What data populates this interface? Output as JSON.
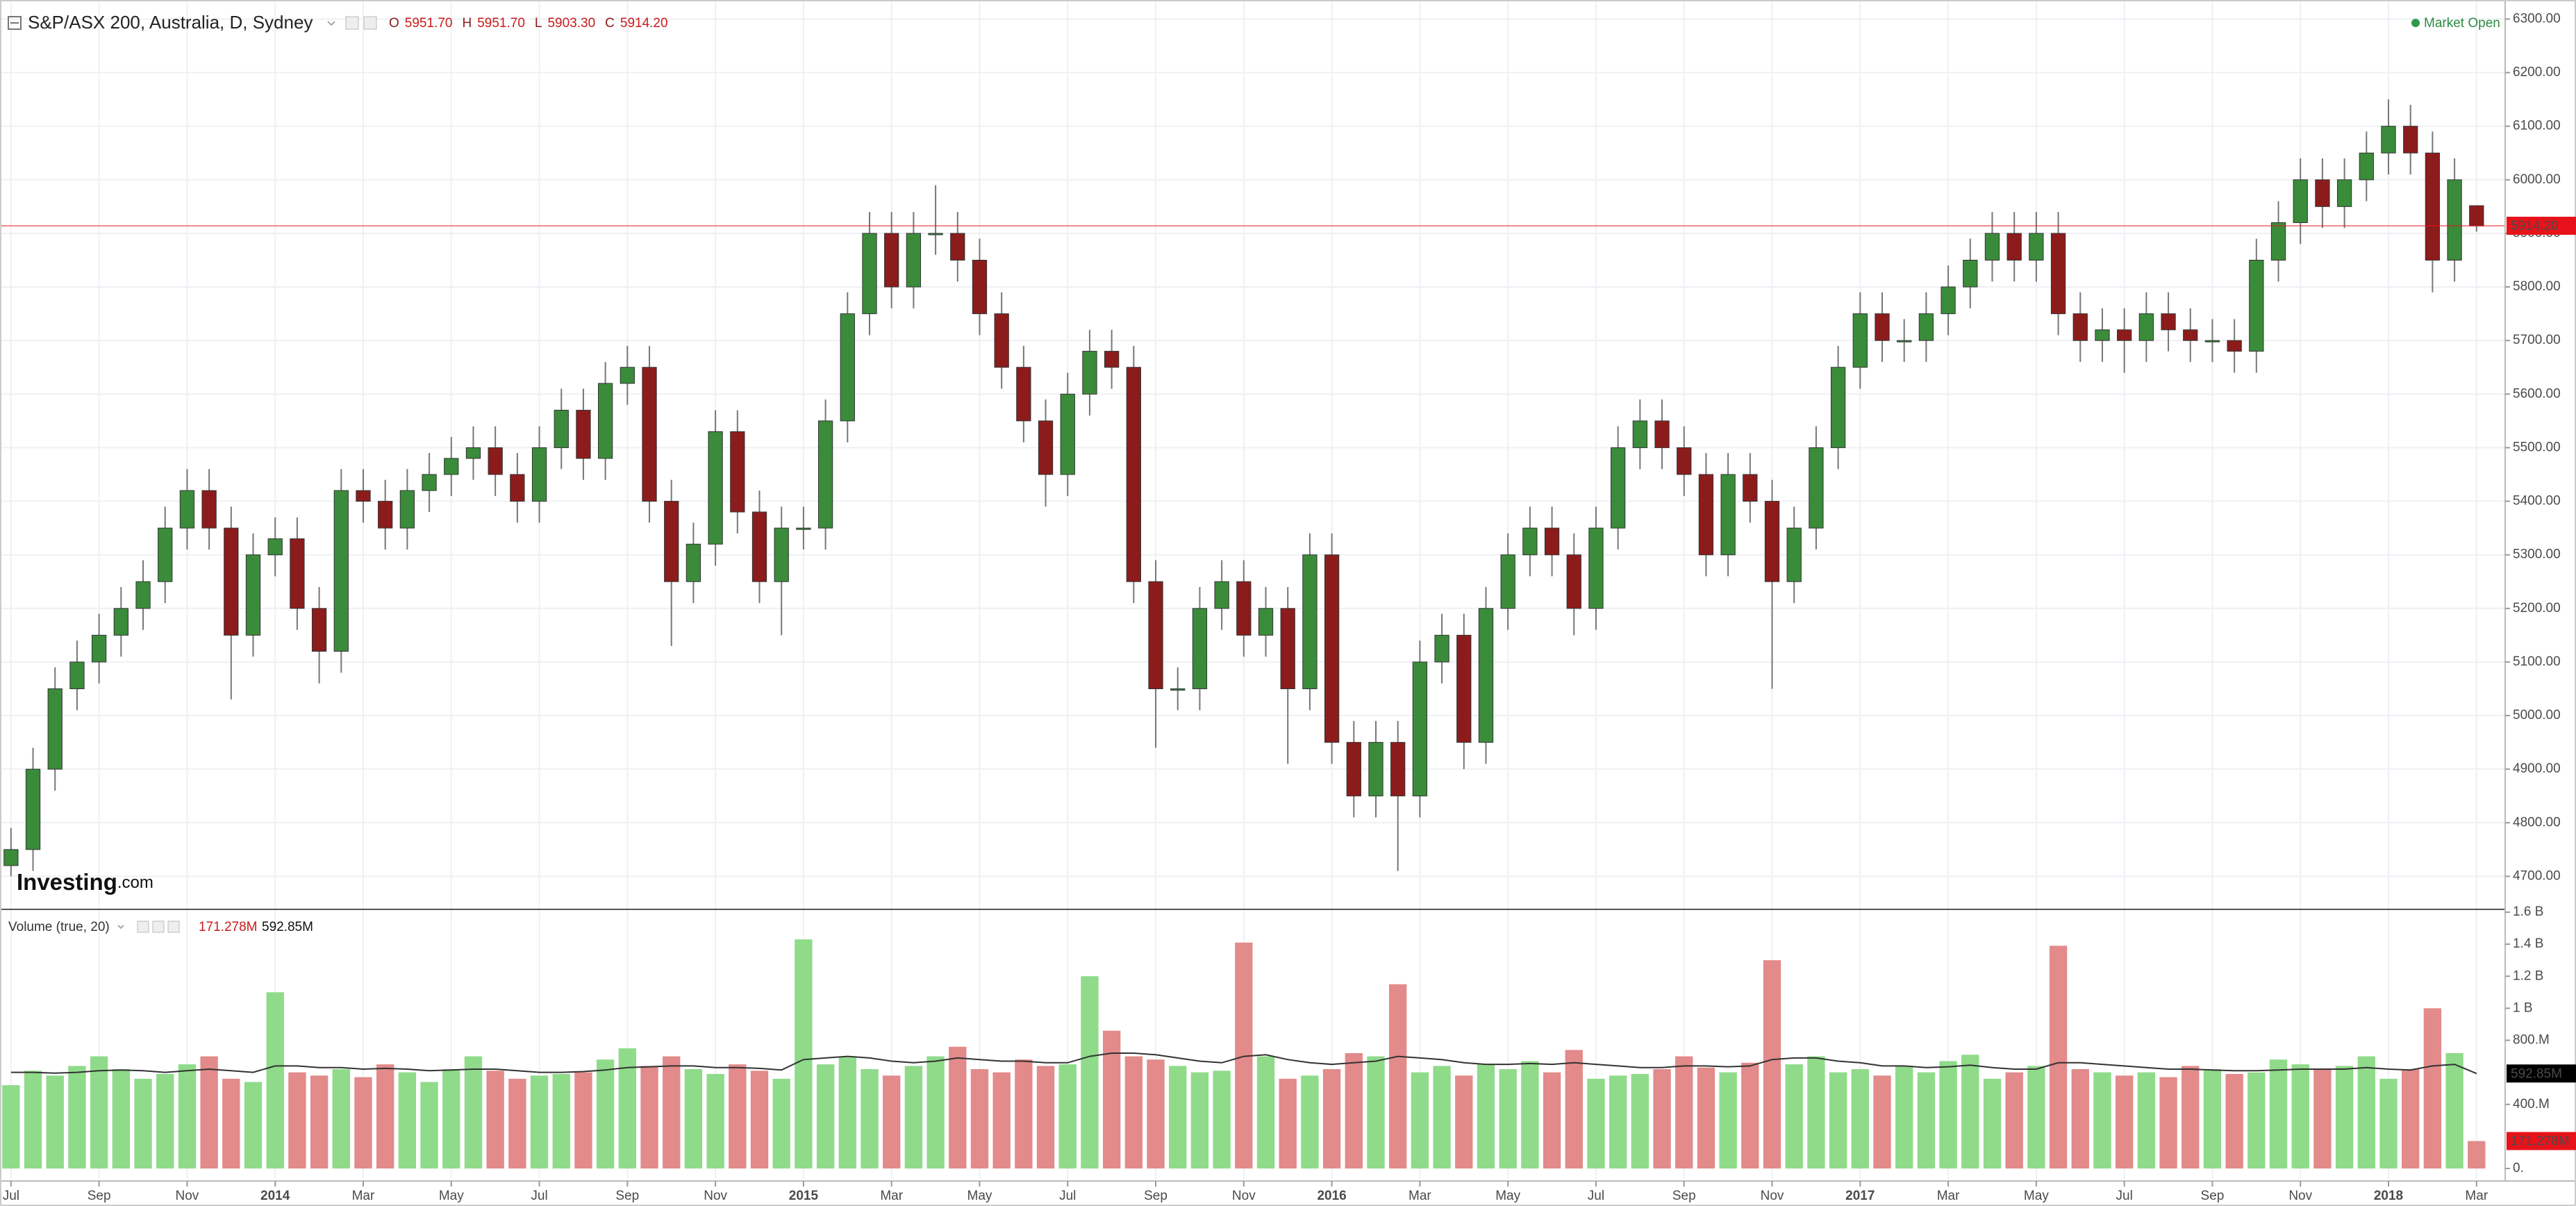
{
  "header": {
    "title": "S&P/ASX 200, Australia, D, Sydney",
    "ohlc": [
      {
        "label": "O",
        "value": "5951.70"
      },
      {
        "label": "H",
        "value": "5951.70"
      },
      {
        "label": "L",
        "value": "5903.30"
      },
      {
        "label": "C",
        "value": "5914.20"
      }
    ],
    "status": "Market Open"
  },
  "logo": {
    "brand": "Investing",
    "suffix": ".com"
  },
  "chart_data": [
    {
      "type": "candlestick",
      "up_color": "#3a8c3a",
      "down_color": "#8c1c1c",
      "grid": true,
      "ylim": [
        4650,
        6320
      ],
      "yticks": [
        {
          "value": 4700,
          "label": "4700.00"
        },
        {
          "value": 4800,
          "label": "4800.00"
        },
        {
          "value": 4900,
          "label": "4900.00"
        },
        {
          "value": 5000,
          "label": "5000.00"
        },
        {
          "value": 5100,
          "label": "5100.00"
        },
        {
          "value": 5200,
          "label": "5200.00"
        },
        {
          "value": 5300,
          "label": "5300.00"
        },
        {
          "value": 5400,
          "label": "5400.00"
        },
        {
          "value": 5500,
          "label": "5500.00"
        },
        {
          "value": 5600,
          "label": "5600.00"
        },
        {
          "value": 5700,
          "label": "5700.00"
        },
        {
          "value": 5800,
          "label": "5800.00"
        },
        {
          "value": 5900,
          "label": "5900.00"
        },
        {
          "value": 6000,
          "label": "6000.00"
        },
        {
          "value": 6100,
          "label": "6100.00"
        },
        {
          "value": 6200,
          "label": "6200.00"
        },
        {
          "value": 6300,
          "label": "6300.00"
        }
      ],
      "xticks": [
        {
          "value": 0,
          "label": "Jul"
        },
        {
          "value": 4,
          "label": "Sep"
        },
        {
          "value": 8,
          "label": "Nov"
        },
        {
          "value": 12,
          "label": "2014"
        },
        {
          "value": 16,
          "label": "Mar"
        },
        {
          "value": 20,
          "label": "May"
        },
        {
          "value": 24,
          "label": "Jul"
        },
        {
          "value": 28,
          "label": "Sep"
        },
        {
          "value": 32,
          "label": "Nov"
        },
        {
          "value": 36,
          "label": "2015"
        },
        {
          "value": 40,
          "label": "Mar"
        },
        {
          "value": 44,
          "label": "May"
        },
        {
          "value": 48,
          "label": "Jul"
        },
        {
          "value": 52,
          "label": "Sep"
        },
        {
          "value": 56,
          "label": "Nov"
        },
        {
          "value": 60,
          "label": "2016"
        },
        {
          "value": 64,
          "label": "Mar"
        },
        {
          "value": 68,
          "label": "May"
        },
        {
          "value": 72,
          "label": "Jul"
        },
        {
          "value": 76,
          "label": "Sep"
        },
        {
          "value": 80,
          "label": "Nov"
        },
        {
          "value": 84,
          "label": "2017"
        },
        {
          "value": 88,
          "label": "Mar"
        },
        {
          "value": 92,
          "label": "May"
        },
        {
          "value": 96,
          "label": "Jul"
        },
        {
          "value": 100,
          "label": "Sep"
        },
        {
          "value": 104,
          "label": "Nov"
        },
        {
          "value": 108,
          "label": "2018"
        },
        {
          "value": 112,
          "label": "Mar"
        }
      ],
      "xlim": [
        -0.5,
        113.3
      ],
      "open": [
        4720,
        4750,
        4900,
        5050,
        5100,
        5150,
        5200,
        5250,
        5350,
        5420,
        5350,
        5150,
        5300,
        5330,
        5200,
        5120,
        5420,
        5400,
        5350,
        5420,
        5450,
        5480,
        5500,
        5450,
        5400,
        5500,
        5570,
        5480,
        5620,
        5650,
        5400,
        5250,
        5320,
        5530,
        5380,
        5250,
        5350,
        5350,
        5550,
        5750,
        5900,
        5800,
        5900,
        5900,
        5850,
        5750,
        5650,
        5550,
        5450,
        5600,
        5680,
        5650,
        5250,
        5050,
        5050,
        5200,
        5250,
        5150,
        5200,
        5050,
        5300,
        4950,
        4850,
        4950,
        4850,
        5100,
        5150,
        4950,
        5200,
        5300,
        5350,
        5300,
        5200,
        5350,
        5500,
        5550,
        5500,
        5450,
        5300,
        5450,
        5400,
        5250,
        5350,
        5500,
        5650,
        5750,
        5700,
        5700,
        5750,
        5800,
        5850,
        5900,
        5850,
        5900,
        5750,
        5700,
        5720,
        5700,
        5750,
        5720,
        5700,
        5700,
        5680,
        5850,
        5920,
        6000,
        5950,
        6000,
        6050,
        6100,
        6050,
        5850,
        5951.7
      ],
      "high": [
        4790,
        4940,
        5090,
        5140,
        5190,
        5240,
        5290,
        5390,
        5460,
        5460,
        5390,
        5340,
        5370,
        5370,
        5240,
        5460,
        5460,
        5440,
        5460,
        5490,
        5520,
        5540,
        5540,
        5490,
        5540,
        5610,
        5610,
        5660,
        5690,
        5690,
        5440,
        5360,
        5570,
        5570,
        5420,
        5390,
        5390,
        5590,
        5790,
        5940,
        5940,
        5940,
        5990,
        5940,
        5890,
        5790,
        5690,
        5590,
        5640,
        5720,
        5720,
        5690,
        5290,
        5090,
        5240,
        5290,
        5290,
        5240,
        5240,
        5340,
        5340,
        4990,
        4990,
        4990,
        5140,
        5190,
        5190,
        5240,
        5340,
        5390,
        5390,
        5340,
        5390,
        5540,
        5590,
        5590,
        5540,
        5490,
        5490,
        5490,
        5440,
        5390,
        5540,
        5690,
        5790,
        5790,
        5740,
        5790,
        5840,
        5890,
        5940,
        5940,
        5940,
        5940,
        5790,
        5760,
        5760,
        5790,
        5790,
        5760,
        5740,
        5740,
        5890,
        5960,
        6040,
        6040,
        6040,
        6090,
        6150,
        6140,
        6090,
        6040,
        5951.7
      ],
      "low": [
        4700,
        4710,
        4860,
        5010,
        5060,
        5110,
        5160,
        5210,
        5310,
        5310,
        5030,
        5110,
        5260,
        5160,
        5060,
        5080,
        5360,
        5310,
        5310,
        5380,
        5410,
        5440,
        5410,
        5360,
        5360,
        5460,
        5440,
        5440,
        5580,
        5360,
        5130,
        5210,
        5280,
        5340,
        5210,
        5150,
        5310,
        5310,
        5510,
        5710,
        5760,
        5760,
        5860,
        5810,
        5710,
        5610,
        5510,
        5390,
        5410,
        5560,
        5610,
        5210,
        4940,
        5010,
        5010,
        5160,
        5110,
        5110,
        4910,
        5010,
        4910,
        4810,
        4810,
        4710,
        4810,
        5060,
        4900,
        4910,
        5160,
        5260,
        5260,
        5150,
        5160,
        5310,
        5460,
        5460,
        5410,
        5260,
        5260,
        5360,
        5050,
        5210,
        5310,
        5460,
        5610,
        5660,
        5660,
        5660,
        5710,
        5760,
        5810,
        5810,
        5810,
        5710,
        5660,
        5660,
        5640,
        5660,
        5680,
        5660,
        5660,
        5640,
        5640,
        5810,
        5880,
        5910,
        5910,
        5960,
        6010,
        6010,
        5790,
        5810,
        5903.3
      ],
      "close": [
        4750,
        4900,
        5050,
        5100,
        5150,
        5200,
        5250,
        5350,
        5420,
        5350,
        5150,
        5300,
        5330,
        5200,
        5120,
        5420,
        5400,
        5350,
        5420,
        5450,
        5480,
        5500,
        5450,
        5400,
        5500,
        5570,
        5480,
        5620,
        5650,
        5400,
        5250,
        5320,
        5530,
        5380,
        5250,
        5350,
        5350,
        5550,
        5750,
        5900,
        5800,
        5900,
        5900,
        5850,
        5750,
        5650,
        5550,
        5450,
        5600,
        5680,
        5650,
        5250,
        5050,
        5050,
        5200,
        5250,
        5150,
        5200,
        5050,
        5300,
        4950,
        4850,
        4950,
        4850,
        5100,
        5150,
        4950,
        5200,
        5300,
        5350,
        5300,
        5200,
        5350,
        5500,
        5550,
        5500,
        5450,
        5300,
        5450,
        5400,
        5250,
        5350,
        5500,
        5650,
        5750,
        5700,
        5700,
        5750,
        5800,
        5850,
        5900,
        5850,
        5900,
        5750,
        5700,
        5720,
        5700,
        5750,
        5720,
        5700,
        5700,
        5680,
        5850,
        5920,
        6000,
        5950,
        6000,
        6050,
        6100,
        6050,
        5850,
        6000,
        5914.2
      ],
      "last_price": {
        "value": 5914.2,
        "label": "5914.20",
        "color": "#e8121a"
      }
    },
    {
      "type": "bar",
      "title": "Volume (true, 20)",
      "up_color": "#8fdb8a",
      "down_color": "#e38a8a",
      "ma_color": "#333333",
      "ylim": [
        0,
        1600
      ],
      "yticks": [
        {
          "value": 0,
          "label": "0."
        },
        {
          "value": 400,
          "label": "400.M"
        },
        {
          "value": 800,
          "label": "800.M"
        },
        {
          "value": 1000,
          "label": "1 B"
        },
        {
          "value": 1200,
          "label": "1.2 B"
        },
        {
          "value": 1400,
          "label": "1.4 B"
        },
        {
          "value": 1600,
          "label": "1.6 B"
        }
      ],
      "values": [
        520,
        610,
        580,
        640,
        700,
        620,
        560,
        590,
        650,
        700,
        560,
        540,
        1100,
        600,
        580,
        620,
        570,
        650,
        600,
        540,
        620,
        700,
        610,
        560,
        580,
        590,
        600,
        680,
        750,
        640,
        700,
        620,
        590,
        650,
        610,
        560,
        1430,
        650,
        700,
        620,
        580,
        640,
        700,
        760,
        620,
        600,
        680,
        640,
        650,
        1200,
        860,
        700,
        680,
        640,
        600,
        610,
        1410,
        700,
        560,
        580,
        620,
        720,
        700,
        1150,
        600,
        640,
        580,
        650,
        620,
        670,
        600,
        740,
        560,
        580,
        590,
        620,
        700,
        630,
        600,
        660,
        1300,
        650,
        700,
        600,
        620,
        580,
        640,
        600,
        670,
        710,
        560,
        600,
        640,
        1390,
        620,
        600,
        580,
        600,
        570,
        640,
        620,
        590,
        600,
        680,
        650,
        620,
        640,
        700,
        560,
        620,
        1000,
        720,
        171.278
      ],
      "ma": [
        600,
        600,
        595,
        600,
        610,
        615,
        610,
        600,
        610,
        620,
        610,
        600,
        640,
        640,
        630,
        630,
        620,
        625,
        620,
        610,
        615,
        620,
        620,
        610,
        600,
        600,
        605,
        615,
        630,
        635,
        640,
        640,
        630,
        630,
        625,
        615,
        680,
        690,
        700,
        690,
        670,
        660,
        670,
        690,
        680,
        670,
        670,
        660,
        660,
        700,
        720,
        720,
        710,
        690,
        670,
        660,
        700,
        710,
        680,
        660,
        650,
        660,
        670,
        700,
        690,
        680,
        660,
        650,
        650,
        655,
        650,
        660,
        650,
        640,
        630,
        630,
        640,
        640,
        635,
        640,
        680,
        690,
        690,
        670,
        660,
        640,
        640,
        630,
        635,
        645,
        630,
        620,
        620,
        660,
        660,
        650,
        640,
        630,
        620,
        620,
        615,
        610,
        610,
        615,
        620,
        620,
        620,
        630,
        620,
        615,
        640,
        650,
        592.85
      ],
      "last_volume": {
        "value": 171.278,
        "label": "171.278M",
        "color": "#e8121a"
      },
      "last_ma": {
        "value": 592.85,
        "label": "592.85M",
        "color": "#000000"
      }
    }
  ]
}
